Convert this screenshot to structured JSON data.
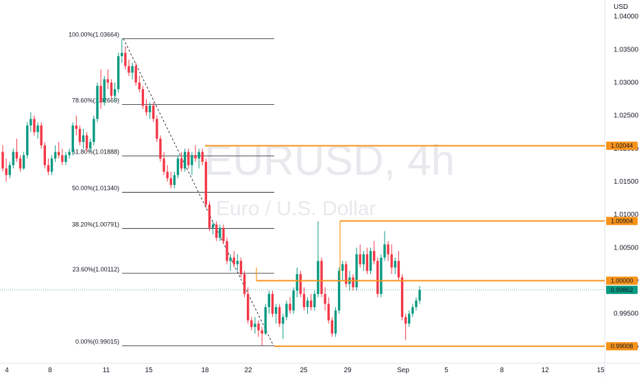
{
  "header": {
    "currency": "USD"
  },
  "watermark": {
    "symbol": "EURUSD, 4h",
    "name": "Euro / U.S. Dollar"
  },
  "colors": {
    "up": "#089981",
    "down": "#f23645",
    "level": "#f7931a",
    "fib": "#131722",
    "current": "#089981"
  },
  "chart_data": {
    "type": "candlestick",
    "ylim": [
      0.9875,
      1.0425
    ],
    "y_ticks": [
      "1.04000",
      "1.03500",
      "1.03000",
      "1.02500",
      "1.02000",
      "1.01500",
      "1.01000",
      "1.00500",
      "1.00000",
      "0.99500",
      "0.99000"
    ],
    "x_ticks": [
      "4",
      "8",
      "11",
      "15",
      "18",
      "22",
      "25",
      "29",
      "Sep",
      "5",
      "8",
      "12",
      "15"
    ],
    "fib_levels": [
      {
        "label": "100.00%(1.03664)",
        "value": 1.03664
      },
      {
        "label": "78.60%(1.02669)",
        "value": 1.02669
      },
      {
        "label": "61.80%(1.01888)",
        "value": 1.01888
      },
      {
        "label": "50.00%(1.01340)",
        "value": 1.0134
      },
      {
        "label": "38.20%(1.00791)",
        "value": 1.00791
      },
      {
        "label": "23.60%(1.00112)",
        "value": 1.00112
      },
      {
        "label": "0.00%(0.99015)",
        "value": 0.99015
      }
    ],
    "levels": [
      {
        "label": "1.02044",
        "value": 1.02044
      },
      {
        "label": "1.00904",
        "value": 1.00904
      },
      {
        "label": "1.00000",
        "value": 1.0
      },
      {
        "label": "0.99008",
        "value": 0.99008
      }
    ],
    "current_price": {
      "label": "0.99862",
      "value": 0.99862
    },
    "candles": [
      [
        1.0195,
        1.0205,
        1.0165,
        1.017
      ],
      [
        1.017,
        1.0185,
        1.015,
        1.016
      ],
      [
        1.016,
        1.018,
        1.0155,
        1.0175
      ],
      [
        1.0175,
        1.02,
        1.017,
        1.0195
      ],
      [
        1.0195,
        1.0215,
        1.018,
        1.0185
      ],
      [
        1.0185,
        1.019,
        1.0165,
        1.017
      ],
      [
        1.017,
        1.0195,
        1.0168,
        1.019
      ],
      [
        1.019,
        1.024,
        1.0185,
        1.0235
      ],
      [
        1.0235,
        1.0255,
        1.0225,
        1.0245
      ],
      [
        1.0245,
        1.025,
        1.022,
        1.0225
      ],
      [
        1.0225,
        1.024,
        1.0215,
        1.0235
      ],
      [
        1.0235,
        1.024,
        1.02,
        1.0205
      ],
      [
        1.0205,
        1.021,
        1.017,
        1.0175
      ],
      [
        1.0175,
        1.0185,
        1.016,
        1.0165
      ],
      [
        1.0165,
        1.019,
        1.016,
        1.0185
      ],
      [
        1.0185,
        1.0205,
        1.018,
        1.0195
      ],
      [
        1.0195,
        1.021,
        1.0185,
        1.019
      ],
      [
        1.019,
        1.02,
        1.0175,
        1.018
      ],
      [
        1.018,
        1.0195,
        1.0175,
        1.019
      ],
      [
        1.019,
        1.02,
        1.0185,
        1.0195
      ],
      [
        1.0195,
        1.024,
        1.019,
        1.0235
      ],
      [
        1.0235,
        1.025,
        1.022,
        1.023
      ],
      [
        1.023,
        1.0235,
        1.0205,
        1.021
      ],
      [
        1.021,
        1.023,
        1.02,
        1.022
      ],
      [
        1.022,
        1.0225,
        1.0195,
        1.02
      ],
      [
        1.02,
        1.0215,
        1.0195,
        1.021
      ],
      [
        1.021,
        1.025,
        1.0205,
        1.0245
      ],
      [
        1.0245,
        1.03,
        1.024,
        1.0295
      ],
      [
        1.0295,
        1.032,
        1.026,
        1.027
      ],
      [
        1.027,
        1.031,
        1.0265,
        1.0305
      ],
      [
        1.0305,
        1.032,
        1.029,
        1.03
      ],
      [
        1.03,
        1.0305,
        1.0275,
        1.028
      ],
      [
        1.028,
        1.03,
        1.027,
        1.029
      ],
      [
        1.029,
        1.0345,
        1.0285,
        1.034
      ],
      [
        1.034,
        1.0366,
        1.033,
        1.0345
      ],
      [
        1.0345,
        1.0355,
        1.032,
        1.0325
      ],
      [
        1.0325,
        1.0335,
        1.031,
        1.0315
      ],
      [
        1.0315,
        1.033,
        1.0305,
        1.0325
      ],
      [
        1.0325,
        1.033,
        1.0295,
        1.03
      ],
      [
        1.03,
        1.031,
        1.0285,
        1.029
      ],
      [
        1.029,
        1.0295,
        1.026,
        1.0265
      ],
      [
        1.0265,
        1.0275,
        1.025,
        1.0255
      ],
      [
        1.0255,
        1.027,
        1.0245,
        1.0265
      ],
      [
        1.0265,
        1.027,
        1.024,
        1.0245
      ],
      [
        1.0245,
        1.025,
        1.021,
        1.0215
      ],
      [
        1.0215,
        1.022,
        1.018,
        1.0185
      ],
      [
        1.0185,
        1.0195,
        1.016,
        1.0165
      ],
      [
        1.0165,
        1.0175,
        1.015,
        1.0155
      ],
      [
        1.0155,
        1.0165,
        1.014,
        1.0145
      ],
      [
        1.0145,
        1.0165,
        1.014,
        1.016
      ],
      [
        1.016,
        1.019,
        1.0155,
        1.0185
      ],
      [
        1.0185,
        1.0195,
        1.0165,
        1.017
      ],
      [
        1.017,
        1.02,
        1.0165,
        1.0195
      ],
      [
        1.0195,
        1.02,
        1.017,
        1.0175
      ],
      [
        1.0175,
        1.0195,
        1.016,
        1.019
      ],
      [
        1.019,
        1.0205,
        1.018,
        1.0185
      ],
      [
        1.0185,
        1.02,
        1.017,
        1.0195
      ],
      [
        1.0195,
        1.02,
        1.0175,
        1.018
      ],
      [
        1.018,
        1.0185,
        1.011,
        1.0115
      ],
      [
        1.0115,
        1.012,
        1.0075,
        1.008
      ],
      [
        1.008,
        1.009,
        1.007,
        1.0085
      ],
      [
        1.0085,
        1.009,
        1.006,
        1.0065
      ],
      [
        1.0065,
        1.0085,
        1.006,
        1.008
      ],
      [
        1.008,
        1.0085,
        1.0055,
        1.006
      ],
      [
        1.006,
        1.0065,
        1.0025,
        1.003
      ],
      [
        1.003,
        1.004,
        1.0015,
        1.0035
      ],
      [
        1.0035,
        1.0045,
        1.002,
        1.0025
      ],
      [
        1.0025,
        1.004,
        1.0015,
        1.003
      ],
      [
        1.003,
        1.0035,
        1.0005,
        1.001
      ],
      [
        1.001,
        1.0015,
        0.9975,
        0.998
      ],
      [
        0.998,
        0.999,
        0.9935,
        0.994
      ],
      [
        0.994,
        0.9945,
        0.9925,
        0.993
      ],
      [
        0.993,
        0.9945,
        0.992,
        0.9935
      ],
      [
        0.9935,
        0.994,
        0.9915,
        0.9925
      ],
      [
        0.9925,
        0.993,
        0.9902,
        0.992
      ],
      [
        0.992,
        0.9965,
        0.9918,
        0.996
      ],
      [
        0.996,
        0.9985,
        0.995,
        0.998
      ],
      [
        0.998,
        0.9985,
        0.9945,
        0.995
      ],
      [
        0.995,
        0.9965,
        0.9935,
        0.996
      ],
      [
        0.996,
        0.9965,
        0.993,
        0.9935
      ],
      [
        0.9935,
        0.995,
        0.9912,
        0.9945
      ],
      [
        0.9945,
        0.997,
        0.994,
        0.9965
      ],
      [
        0.9965,
        0.9975,
        0.995,
        0.9955
      ],
      [
        0.9955,
        0.999,
        0.995,
        0.9985
      ],
      [
        0.9985,
        1.002,
        0.9975,
        1.001
      ],
      [
        1.001,
        1.0015,
        0.9975,
        0.998
      ],
      [
        0.998,
        0.999,
        0.9955,
        0.996
      ],
      [
        0.996,
        0.9975,
        0.995,
        0.997
      ],
      [
        0.997,
        0.998,
        0.9955,
        0.996
      ],
      [
        0.996,
        0.9985,
        0.9955,
        0.998
      ],
      [
        0.998,
        1.009,
        0.9975,
        1.003
      ],
      [
        1.003,
        1.0035,
        0.9975,
        0.998
      ],
      [
        0.998,
        0.999,
        0.9955,
        0.9965
      ],
      [
        0.9965,
        0.9975,
        0.9935,
        0.994
      ],
      [
        0.994,
        0.9945,
        0.9915,
        0.992
      ],
      [
        0.992,
        0.996,
        0.9915,
        0.9955
      ],
      [
        0.9955,
        1.002,
        0.995,
        1.0015
      ],
      [
        1.0015,
        1.003,
        1.0,
        1.0025
      ],
      [
        1.0025,
        1.003,
        0.999,
        0.9995
      ],
      [
        0.9995,
        1.0015,
        0.9985,
        1.0005
      ],
      [
        1.0005,
        1.001,
        0.9985,
        0.999
      ],
      [
        0.999,
        1.005,
        0.9985,
        1.004
      ],
      [
        1.004,
        1.0055,
        1.002,
        1.0025
      ],
      [
        1.0025,
        1.0045,
        1.0015,
        1.004
      ],
      [
        1.004,
        1.005,
        1.001,
        1.0015
      ],
      [
        1.0015,
        1.005,
        1.001,
        1.0045
      ],
      [
        1.0045,
        1.006,
        1.0025,
        1.003
      ],
      [
        1.003,
        1.0035,
        0.9975,
        0.998
      ],
      [
        0.998,
        1.004,
        0.9975,
        1.0035
      ],
      [
        1.0035,
        1.0075,
        1.003,
        1.0055
      ],
      [
        1.0055,
        1.006,
        1.003,
        1.004
      ],
      [
        1.004,
        1.0055,
        1.001,
        1.002
      ],
      [
        1.002,
        1.0035,
        1.001,
        1.003
      ],
      [
        1.003,
        1.0045,
        1.0,
        1.0005
      ],
      [
        1.0005,
        1.001,
        0.994,
        0.9945
      ],
      [
        0.9945,
        0.995,
        0.991,
        0.9935
      ],
      [
        0.9935,
        0.9955,
        0.993,
        0.995
      ],
      [
        0.995,
        0.9965,
        0.9945,
        0.996
      ],
      [
        0.996,
        0.9975,
        0.9955,
        0.997
      ],
      [
        0.997,
        0.9992,
        0.9965,
        0.9986
      ]
    ]
  }
}
